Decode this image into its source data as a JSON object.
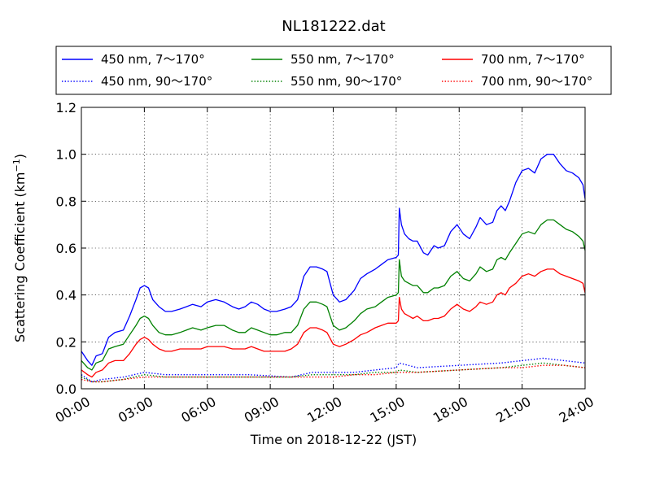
{
  "chart_data": {
    "type": "line",
    "title": "NL181222.dat",
    "xlabel": "Time on 2018-12-22 (JST)",
    "ylabel": "Scattering Coefficient (km",
    "ylabel_sup": "−1",
    "ylabel_close": ")",
    "xlim": [
      0,
      24
    ],
    "ylim": [
      0,
      1.2
    ],
    "grid": true,
    "legend_position": "top, outside plot, 3 columns",
    "x_ticks": [
      0,
      3,
      6,
      9,
      12,
      15,
      18,
      21,
      24
    ],
    "x_tick_labels": [
      "00:00",
      "03:00",
      "06:00",
      "09:00",
      "12:00",
      "15:00",
      "18:00",
      "21:00",
      "24:00"
    ],
    "y_ticks": [
      0,
      0.2,
      0.4,
      0.6,
      0.8,
      1.0,
      1.2
    ],
    "y_tick_labels": [
      "0.0",
      "0.2",
      "0.4",
      "0.6",
      "0.8",
      "1.0",
      "1.2"
    ],
    "x_unit": "hours (JST)",
    "series": [
      {
        "name": "450 nm, 7～170°",
        "color": "#0000ff",
        "style": "solid",
        "x": [
          0,
          0.3,
          0.5,
          0.7,
          1.0,
          1.3,
          1.6,
          2.0,
          2.3,
          2.6,
          2.8,
          3.0,
          3.2,
          3.4,
          3.7,
          4.0,
          4.3,
          4.7,
          5.0,
          5.3,
          5.7,
          6.0,
          6.4,
          6.8,
          7.2,
          7.5,
          7.8,
          8.1,
          8.4,
          8.7,
          9.0,
          9.3,
          9.7,
          10.0,
          10.3,
          10.6,
          10.9,
          11.2,
          11.5,
          11.7,
          12.0,
          12.3,
          12.6,
          13.0,
          13.3,
          13.6,
          14.0,
          14.3,
          14.6,
          15.0,
          15.1,
          15.15,
          15.25,
          15.4,
          15.6,
          15.8,
          16.0,
          16.3,
          16.5,
          16.8,
          17.0,
          17.3,
          17.6,
          17.9,
          18.2,
          18.5,
          18.8,
          19.0,
          19.3,
          19.6,
          19.8,
          20.0,
          20.2,
          20.4,
          20.7,
          21.0,
          21.3,
          21.6,
          21.9,
          22.2,
          22.5,
          22.8,
          23.1,
          23.4,
          23.7,
          23.9,
          24.0
        ],
        "y": [
          0.16,
          0.12,
          0.1,
          0.14,
          0.15,
          0.22,
          0.24,
          0.25,
          0.31,
          0.38,
          0.43,
          0.44,
          0.43,
          0.38,
          0.35,
          0.33,
          0.33,
          0.34,
          0.35,
          0.36,
          0.35,
          0.37,
          0.38,
          0.37,
          0.35,
          0.34,
          0.35,
          0.37,
          0.36,
          0.34,
          0.33,
          0.33,
          0.34,
          0.35,
          0.38,
          0.48,
          0.52,
          0.52,
          0.51,
          0.5,
          0.4,
          0.37,
          0.38,
          0.42,
          0.47,
          0.49,
          0.51,
          0.53,
          0.55,
          0.56,
          0.57,
          0.77,
          0.7,
          0.66,
          0.64,
          0.63,
          0.63,
          0.58,
          0.57,
          0.61,
          0.6,
          0.61,
          0.67,
          0.7,
          0.66,
          0.64,
          0.69,
          0.73,
          0.7,
          0.71,
          0.76,
          0.78,
          0.76,
          0.8,
          0.88,
          0.93,
          0.94,
          0.92,
          0.98,
          1.0,
          1.0,
          0.96,
          0.93,
          0.92,
          0.9,
          0.87,
          0.81
        ]
      },
      {
        "name": "450 nm, 90～170°",
        "color": "#0000ff",
        "style": "dotted",
        "x": [
          0,
          0.5,
          1.0,
          2.0,
          3.0,
          4.0,
          6.0,
          8.0,
          10.0,
          11.0,
          12.0,
          13.0,
          14.0,
          15.0,
          15.15,
          16.0,
          18.0,
          20.0,
          21.0,
          22.0,
          23.0,
          24.0
        ],
        "y": [
          0.06,
          0.03,
          0.04,
          0.05,
          0.07,
          0.06,
          0.06,
          0.06,
          0.05,
          0.07,
          0.07,
          0.07,
          0.08,
          0.09,
          0.11,
          0.09,
          0.1,
          0.11,
          0.12,
          0.13,
          0.12,
          0.11
        ]
      },
      {
        "name": "550 nm, 7～170°",
        "color": "#008000",
        "style": "solid",
        "x": [
          0,
          0.3,
          0.5,
          0.7,
          1.0,
          1.3,
          1.6,
          2.0,
          2.3,
          2.6,
          2.8,
          3.0,
          3.2,
          3.4,
          3.7,
          4.0,
          4.3,
          4.7,
          5.0,
          5.3,
          5.7,
          6.0,
          6.4,
          6.8,
          7.2,
          7.5,
          7.8,
          8.1,
          8.4,
          8.7,
          9.0,
          9.3,
          9.7,
          10.0,
          10.3,
          10.6,
          10.9,
          11.2,
          11.5,
          11.7,
          12.0,
          12.3,
          12.6,
          13.0,
          13.3,
          13.6,
          14.0,
          14.3,
          14.6,
          15.0,
          15.1,
          15.15,
          15.25,
          15.4,
          15.6,
          15.8,
          16.0,
          16.3,
          16.5,
          16.8,
          17.0,
          17.3,
          17.6,
          17.9,
          18.2,
          18.5,
          18.8,
          19.0,
          19.3,
          19.6,
          19.8,
          20.0,
          20.2,
          20.4,
          20.7,
          21.0,
          21.3,
          21.6,
          21.9,
          22.2,
          22.5,
          22.8,
          23.1,
          23.4,
          23.7,
          23.9,
          24.0
        ],
        "y": [
          0.12,
          0.09,
          0.08,
          0.11,
          0.12,
          0.17,
          0.18,
          0.19,
          0.23,
          0.27,
          0.3,
          0.31,
          0.3,
          0.27,
          0.24,
          0.23,
          0.23,
          0.24,
          0.25,
          0.26,
          0.25,
          0.26,
          0.27,
          0.27,
          0.25,
          0.24,
          0.24,
          0.26,
          0.25,
          0.24,
          0.23,
          0.23,
          0.24,
          0.24,
          0.27,
          0.34,
          0.37,
          0.37,
          0.36,
          0.35,
          0.27,
          0.25,
          0.26,
          0.29,
          0.32,
          0.34,
          0.35,
          0.37,
          0.39,
          0.4,
          0.41,
          0.55,
          0.48,
          0.46,
          0.45,
          0.44,
          0.44,
          0.41,
          0.41,
          0.43,
          0.43,
          0.44,
          0.48,
          0.5,
          0.47,
          0.46,
          0.49,
          0.52,
          0.5,
          0.51,
          0.55,
          0.56,
          0.55,
          0.58,
          0.62,
          0.66,
          0.67,
          0.66,
          0.7,
          0.72,
          0.72,
          0.7,
          0.68,
          0.67,
          0.65,
          0.63,
          0.59
        ]
      },
      {
        "name": "550 nm, 90～170°",
        "color": "#008000",
        "style": "dotted",
        "x": [
          0,
          0.5,
          1.0,
          2.0,
          3.0,
          4.0,
          6.0,
          8.0,
          10.0,
          11.0,
          12.0,
          13.0,
          14.0,
          15.0,
          15.15,
          16.0,
          18.0,
          20.0,
          21.0,
          22.0,
          23.0,
          24.0
        ],
        "y": [
          0.05,
          0.03,
          0.03,
          0.04,
          0.06,
          0.05,
          0.05,
          0.05,
          0.05,
          0.06,
          0.06,
          0.06,
          0.07,
          0.07,
          0.08,
          0.07,
          0.08,
          0.09,
          0.1,
          0.11,
          0.1,
          0.09
        ]
      },
      {
        "name": "700 nm, 7～170°",
        "color": "#ff0000",
        "style": "solid",
        "x": [
          0,
          0.3,
          0.5,
          0.7,
          1.0,
          1.3,
          1.6,
          2.0,
          2.3,
          2.6,
          2.8,
          3.0,
          3.2,
          3.4,
          3.7,
          4.0,
          4.3,
          4.7,
          5.0,
          5.3,
          5.7,
          6.0,
          6.4,
          6.8,
          7.2,
          7.5,
          7.8,
          8.1,
          8.4,
          8.7,
          9.0,
          9.3,
          9.7,
          10.0,
          10.3,
          10.6,
          10.9,
          11.2,
          11.5,
          11.7,
          12.0,
          12.3,
          12.6,
          13.0,
          13.3,
          13.6,
          14.0,
          14.3,
          14.6,
          15.0,
          15.1,
          15.15,
          15.25,
          15.4,
          15.6,
          15.8,
          16.0,
          16.3,
          16.5,
          16.8,
          17.0,
          17.3,
          17.6,
          17.9,
          18.2,
          18.5,
          18.8,
          19.0,
          19.3,
          19.6,
          19.8,
          20.0,
          20.2,
          20.4,
          20.7,
          21.0,
          21.3,
          21.6,
          21.9,
          22.2,
          22.5,
          22.8,
          23.1,
          23.4,
          23.7,
          23.9,
          24.0
        ],
        "y": [
          0.08,
          0.06,
          0.05,
          0.07,
          0.08,
          0.11,
          0.12,
          0.12,
          0.15,
          0.19,
          0.21,
          0.22,
          0.21,
          0.19,
          0.17,
          0.16,
          0.16,
          0.17,
          0.17,
          0.17,
          0.17,
          0.18,
          0.18,
          0.18,
          0.17,
          0.17,
          0.17,
          0.18,
          0.17,
          0.16,
          0.16,
          0.16,
          0.16,
          0.17,
          0.19,
          0.24,
          0.26,
          0.26,
          0.25,
          0.24,
          0.19,
          0.18,
          0.19,
          0.21,
          0.23,
          0.24,
          0.26,
          0.27,
          0.28,
          0.28,
          0.29,
          0.39,
          0.34,
          0.32,
          0.31,
          0.3,
          0.31,
          0.29,
          0.29,
          0.3,
          0.3,
          0.31,
          0.34,
          0.36,
          0.34,
          0.33,
          0.35,
          0.37,
          0.36,
          0.37,
          0.4,
          0.41,
          0.4,
          0.43,
          0.45,
          0.48,
          0.49,
          0.48,
          0.5,
          0.51,
          0.51,
          0.49,
          0.48,
          0.47,
          0.46,
          0.45,
          0.41
        ]
      },
      {
        "name": "700 nm, 90～170°",
        "color": "#ff0000",
        "style": "dotted",
        "x": [
          0,
          0.5,
          1.0,
          2.0,
          3.0,
          4.0,
          6.0,
          8.0,
          10.0,
          11.0,
          12.0,
          13.0,
          14.0,
          15.0,
          15.15,
          16.0,
          18.0,
          20.0,
          21.0,
          22.0,
          23.0,
          24.0
        ],
        "y": [
          0.04,
          0.03,
          0.03,
          0.04,
          0.05,
          0.05,
          0.05,
          0.05,
          0.05,
          0.05,
          0.05,
          0.06,
          0.06,
          0.07,
          0.07,
          0.07,
          0.08,
          0.09,
          0.09,
          0.1,
          0.1,
          0.09
        ]
      }
    ],
    "legend_order": [
      0,
      2,
      4,
      1,
      3,
      5
    ]
  }
}
